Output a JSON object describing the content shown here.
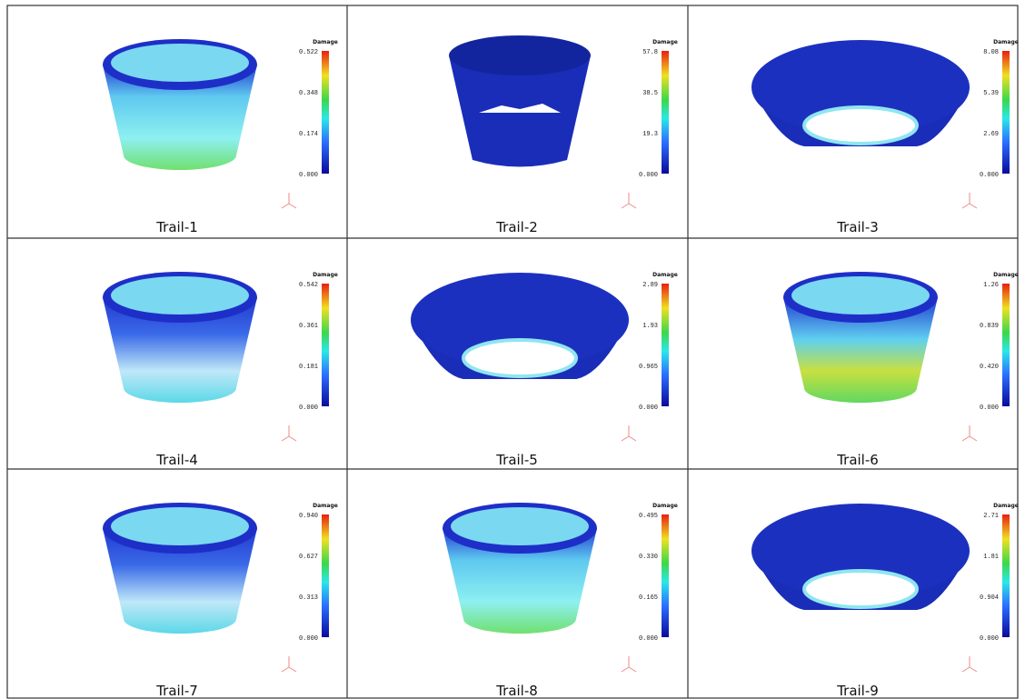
{
  "panels": [
    {
      "caption": "Trail-1",
      "legend_title": "Damage",
      "ticks": [
        "0.522",
        "0.348",
        "0.174",
        "0.000"
      ]
    },
    {
      "caption": "Trail-2",
      "legend_title": "Damage",
      "ticks": [
        "57.8",
        "38.5",
        "19.3",
        "0.000"
      ]
    },
    {
      "caption": "Trail-3",
      "legend_title": "Damage",
      "ticks": [
        "8.08",
        "5.39",
        "2.69",
        "0.000"
      ]
    },
    {
      "caption": "Trail-4",
      "legend_title": "Damage",
      "ticks": [
        "0.542",
        "0.361",
        "0.181",
        "0.000"
      ]
    },
    {
      "caption": "Trail-5",
      "legend_title": "Damage",
      "ticks": [
        "2.89",
        "1.93",
        "0.965",
        "0.000"
      ]
    },
    {
      "caption": "Trail-6",
      "legend_title": "Damage",
      "ticks": [
        "1.26",
        "0.839",
        "0.420",
        "0.000"
      ]
    },
    {
      "caption": "Trail-7",
      "legend_title": "Damage",
      "ticks": [
        "0.940",
        "0.627",
        "0.313",
        "0.000"
      ]
    },
    {
      "caption": "Trail-8",
      "legend_title": "Damage",
      "ticks": [
        "0.495",
        "0.330",
        "0.165",
        "0.000"
      ]
    },
    {
      "caption": "Trail-9",
      "legend_title": "Damage",
      "ticks": [
        "2.71",
        "1.81",
        "0.904",
        "0.000"
      ]
    }
  ]
}
